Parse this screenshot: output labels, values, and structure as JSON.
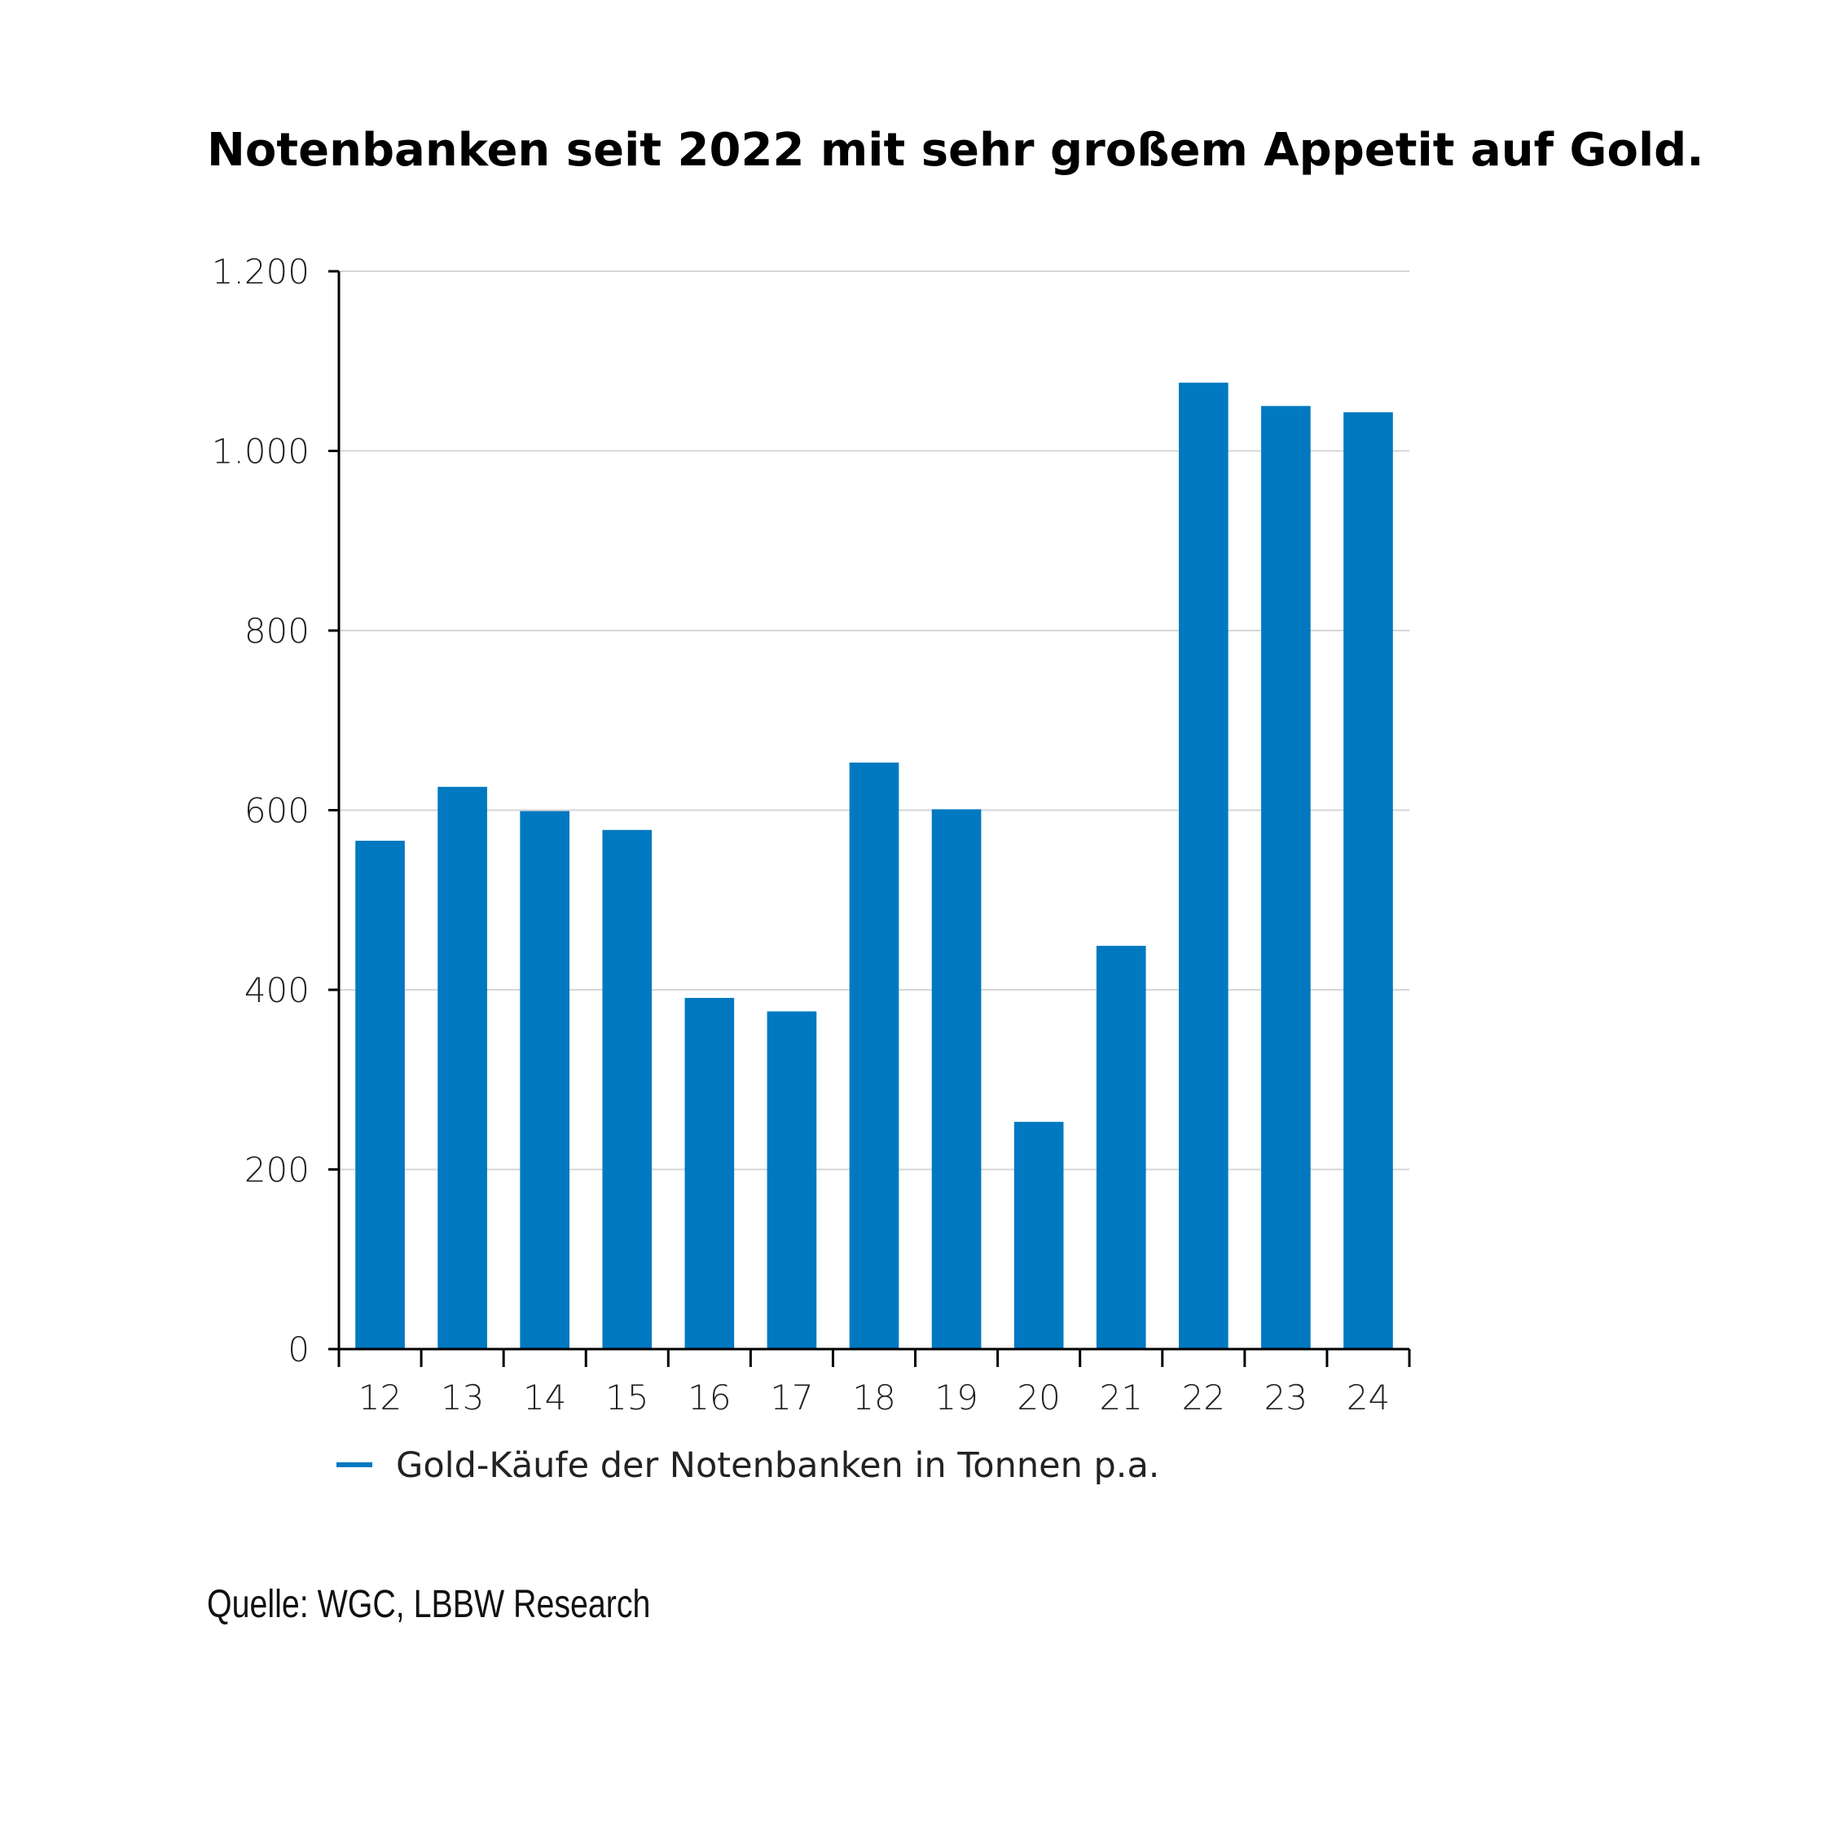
{
  "chart_data": {
    "type": "bar",
    "title": "Notenbanken seit 2022 mit sehr großem Appetit auf Gold.",
    "categories": [
      "12",
      "13",
      "14",
      "15",
      "16",
      "17",
      "18",
      "19",
      "20",
      "21",
      "22",
      "23",
      "24"
    ],
    "series": [
      {
        "name": "Gold-Käufe der Notenbanken in Tonnen p.a.",
        "values": [
          566,
          626,
          599,
          578,
          391,
          376,
          653,
          601,
          253,
          449,
          1076,
          1050,
          1043
        ]
      }
    ],
    "ylim": [
      0,
      1200
    ],
    "yticks": [
      0,
      200,
      400,
      600,
      800,
      1000,
      1200
    ],
    "ytick_labels": [
      "0",
      "200",
      "400",
      "600",
      "800",
      "1.000",
      "1.200"
    ],
    "grid": true,
    "legend_placement": "bottom-left",
    "bar_color": "#0079c1",
    "source": "Quelle: WGC, LBBW Research"
  }
}
